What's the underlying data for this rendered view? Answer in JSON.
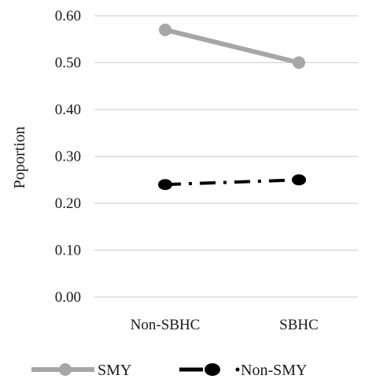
{
  "chart_data": {
    "type": "line",
    "title": "",
    "xlabel": "",
    "ylabel": "Poportion",
    "categories": [
      "Non-SBHC",
      "SBHC"
    ],
    "ylim": [
      0,
      0.6
    ],
    "yticks": [
      "0.00",
      "0.10",
      "0.20",
      "0.30",
      "0.40",
      "0.50",
      "0.60"
    ],
    "grid": true,
    "legend_position": "bottom",
    "series": [
      {
        "name": "SMY",
        "values": [
          0.57,
          0.5
        ],
        "color": "#a6a6a6",
        "style": "solid"
      },
      {
        "name": "Non-SMY",
        "values": [
          0.24,
          0.25
        ],
        "color": "#000000",
        "style": "dash-dot"
      }
    ]
  }
}
